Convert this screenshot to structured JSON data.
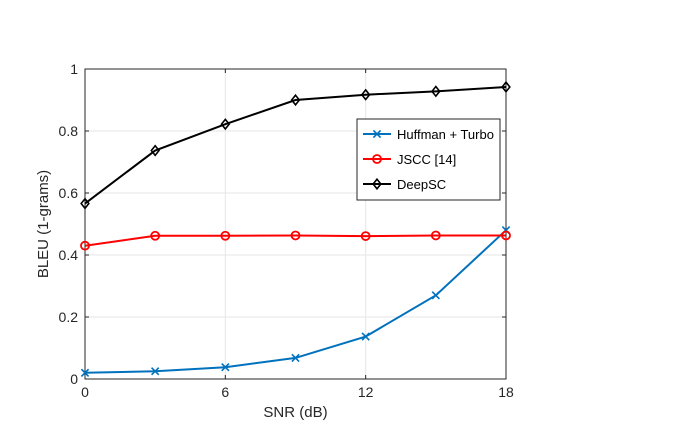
{
  "chart_data": {
    "type": "line",
    "title": "",
    "xlabel": "SNR (dB)",
    "ylabel": "BLEU (1-grams)",
    "xlim": [
      0,
      18
    ],
    "ylim": [
      0,
      1
    ],
    "xticks": [
      0,
      6,
      12,
      18
    ],
    "yticks": [
      0,
      0.2,
      0.4,
      0.6,
      0.8,
      1
    ],
    "xtick_labels": [
      "0",
      "6",
      "12",
      "18"
    ],
    "ytick_labels": [
      "0",
      "0.2",
      "0.4",
      "0.6",
      "0.8",
      "1"
    ],
    "grid": true,
    "legend_position": "upper-right",
    "x": [
      0,
      3,
      6,
      9,
      12,
      15,
      18
    ],
    "series": [
      {
        "name": "Huffman + Turbo",
        "color": "#0072BD",
        "marker": "x",
        "values": [
          0.02,
          0.025,
          0.038,
          0.068,
          0.137,
          0.27,
          0.48
        ]
      },
      {
        "name": "JSCC [14]",
        "color": "#FF0000",
        "marker": "circle",
        "values": [
          0.43,
          0.462,
          0.462,
          0.463,
          0.461,
          0.463,
          0.463
        ]
      },
      {
        "name": "DeepSC",
        "color": "#000000",
        "marker": "diamond",
        "values": [
          0.566,
          0.737,
          0.822,
          0.9,
          0.917,
          0.928,
          0.942
        ]
      }
    ]
  }
}
